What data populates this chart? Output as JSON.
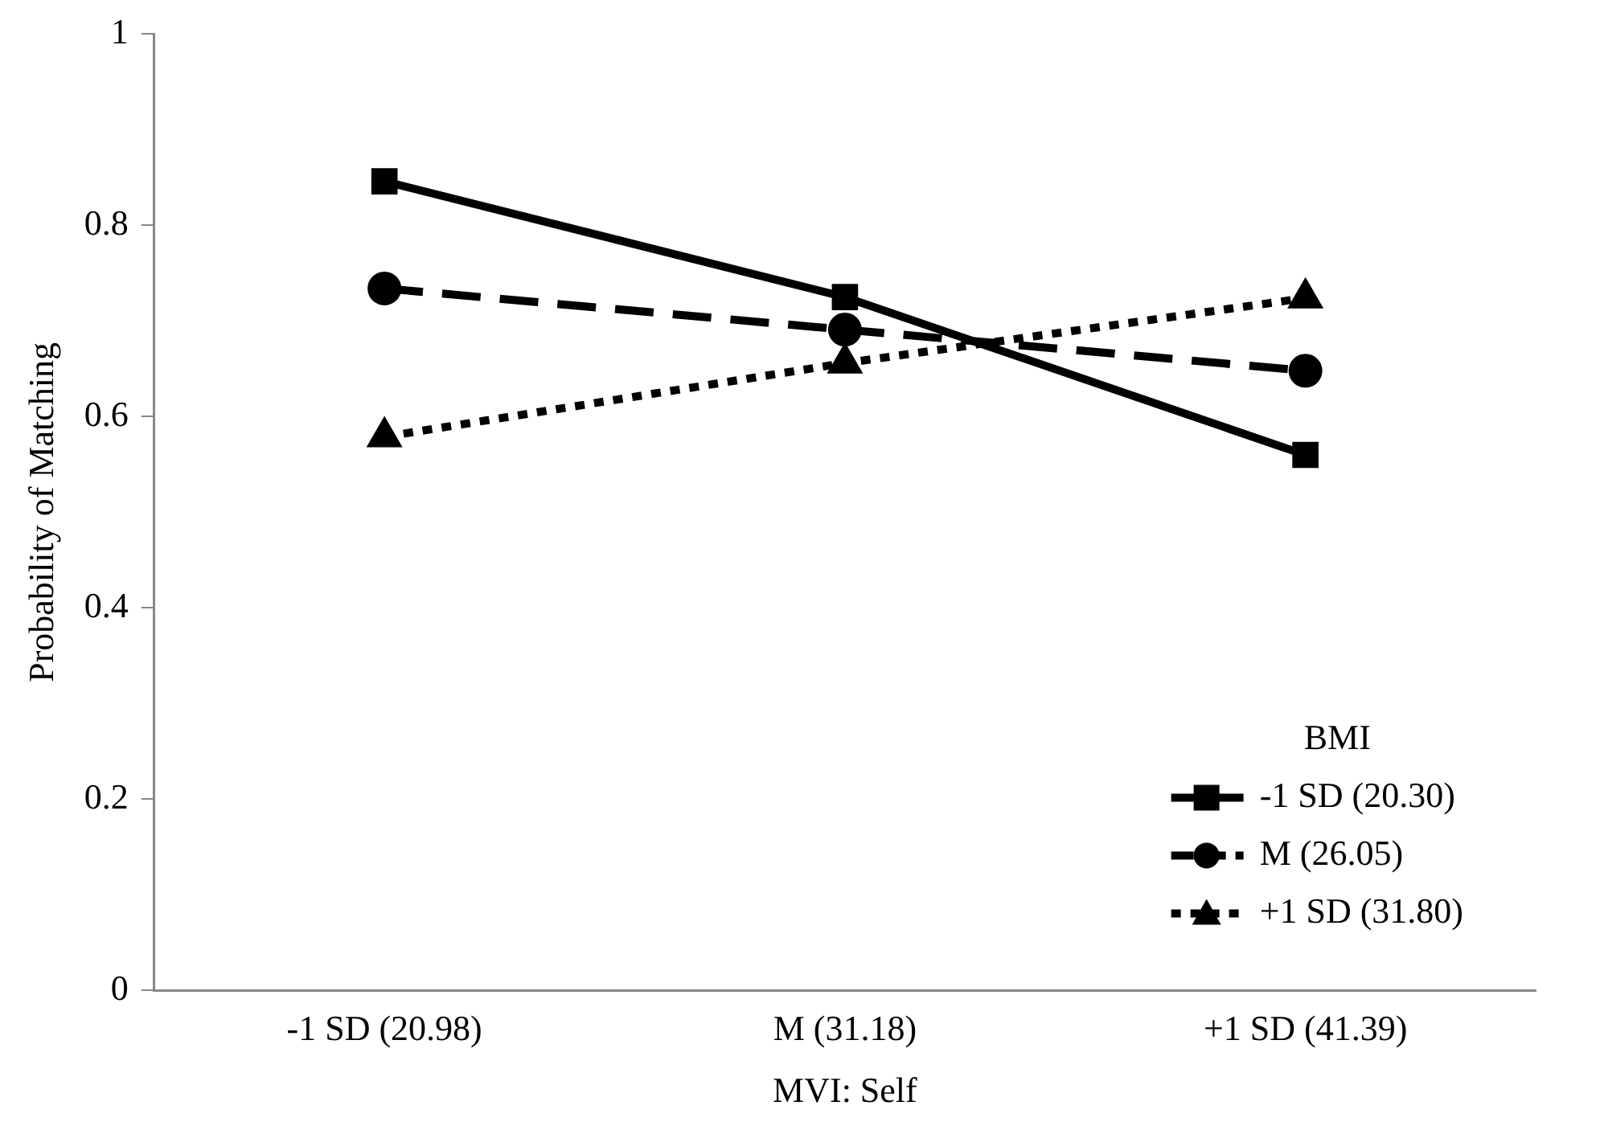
{
  "chart_data": {
    "type": "line",
    "xlabel": "MVI: Self",
    "ylabel": "Probability of Matching",
    "legend_title": "BMI",
    "categories": [
      "-1 SD (20.98)",
      "M (31.18)",
      "+1 SD (41.39)"
    ],
    "series": [
      {
        "name": "-1 SD (20.30)",
        "color": "#000000",
        "values": [
          0.846,
          0.725,
          0.56
        ],
        "marker": "square",
        "line_style": "solid"
      },
      {
        "name": "M (26.05)",
        "color": "#000000",
        "values": [
          0.734,
          0.691,
          0.648
        ],
        "marker": "circle",
        "line_style": "dashed"
      },
      {
        "name": "+1 SD (31.80)",
        "color": "#000000",
        "values": [
          0.579,
          0.656,
          0.724
        ],
        "marker": "triangle",
        "line_style": "dotted"
      }
    ],
    "ylim": [
      0,
      1
    ],
    "yticks": [
      0,
      0.2,
      0.4,
      0.6,
      0.8,
      1
    ],
    "grid": false,
    "legend": "bottom right"
  }
}
